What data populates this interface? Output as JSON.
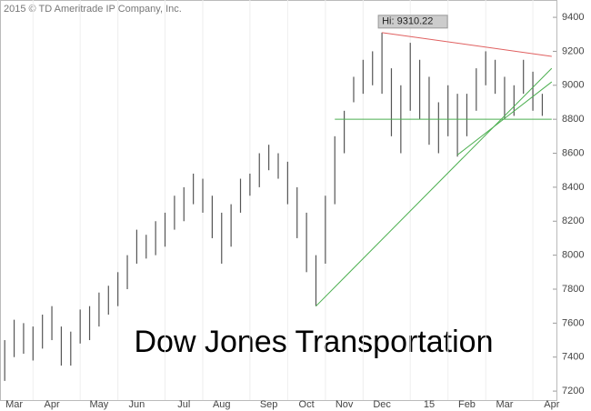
{
  "chart_data": {
    "type": "hilo",
    "copyright": "2015 © TD Ameritrade IP Company, Inc.",
    "title": "Dow Jones Transportation",
    "hi_label": "Hi: 9310.22",
    "color": "#555555",
    "categories": [
      null,
      "Mar",
      null,
      null,
      null,
      "Apr",
      null,
      null,
      null,
      null,
      "May",
      null,
      null,
      null,
      "Jun",
      null,
      null,
      null,
      null,
      "Jul",
      null,
      null,
      null,
      "Aug",
      null,
      null,
      null,
      null,
      "Sep",
      null,
      null,
      null,
      "Oct",
      null,
      null,
      null,
      "Nov",
      null,
      null,
      null,
      "Dec",
      null,
      null,
      null,
      null,
      "15",
      null,
      null,
      null,
      "Feb",
      null,
      null,
      null,
      "Mar",
      null,
      null,
      null,
      null,
      "Apr"
    ],
    "high": [
      7500,
      7620,
      7600,
      7580,
      7650,
      7700,
      7580,
      7550,
      7680,
      7700,
      7780,
      7820,
      7900,
      8000,
      8150,
      8120,
      8200,
      8250,
      8350,
      8400,
      8480,
      8450,
      8350,
      8250,
      8300,
      8450,
      8480,
      8600,
      8650,
      8600,
      8550,
      8400,
      8250,
      8000,
      8350,
      8700,
      8850,
      9050,
      9150,
      9200,
      9310.22,
      9100,
      9000,
      9250,
      9150,
      9050,
      8900,
      9000,
      8950,
      8950,
      9100,
      9200,
      9150,
      9050,
      9000,
      9150,
      9080,
      8950,
      null
    ],
    "low": [
      7260,
      7400,
      7420,
      7380,
      7450,
      7500,
      7350,
      7350,
      7480,
      7500,
      7580,
      7650,
      7700,
      7800,
      7950,
      7980,
      8000,
      8050,
      8150,
      8200,
      8300,
      8250,
      8100,
      7950,
      8050,
      8250,
      8350,
      8400,
      8500,
      8450,
      8300,
      8100,
      7900,
      7700,
      7950,
      8300,
      8600,
      8900,
      8950,
      9000,
      8950,
      8700,
      8600,
      8850,
      8800,
      8650,
      8600,
      8700,
      8580,
      8700,
      8850,
      9000,
      8950,
      8800,
      8820,
      8950,
      8850,
      8820,
      null
    ],
    "trendlines": [
      {
        "color": "#e06060",
        "x": [
          40,
          58
        ],
        "y": [
          9310.22,
          9170
        ]
      },
      {
        "color": "#4caf50",
        "x": [
          33,
          58
        ],
        "y": [
          7700,
          9100
        ]
      },
      {
        "color": "#4caf50",
        "x": [
          48,
          58
        ],
        "y": [
          8590,
          9020
        ]
      },
      {
        "color": "#4caf50",
        "x": [
          35,
          58
        ],
        "y": [
          8800,
          8800
        ]
      }
    ],
    "ylim": [
      7147,
      9502
    ],
    "yticks": [
      7200,
      7400,
      7600,
      7800,
      8000,
      8200,
      8400,
      8600,
      8800,
      9000,
      9200,
      9400
    ]
  }
}
